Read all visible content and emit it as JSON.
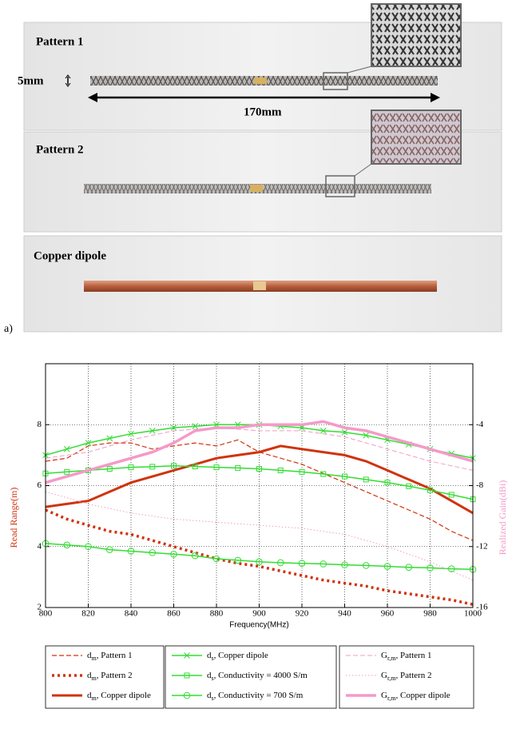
{
  "photo": {
    "panels": [
      {
        "label": "Pattern 1"
      },
      {
        "label": "Pattern 2"
      },
      {
        "label": "Copper dipole"
      }
    ],
    "width_label": "5mm",
    "length_label": "170mm",
    "caption": "a)"
  },
  "chart_data": {
    "type": "line",
    "x_label": "Frequency(MHz)",
    "y_label": "Read Range(m)",
    "y2_label": "Realized Gain(dBi)",
    "x": [
      800,
      810,
      820,
      830,
      840,
      850,
      860,
      870,
      880,
      890,
      900,
      910,
      920,
      930,
      940,
      950,
      960,
      970,
      980,
      990,
      1000
    ],
    "xlim": [
      800,
      1000
    ],
    "xticks": [
      800,
      820,
      840,
      860,
      880,
      900,
      920,
      940,
      960,
      980,
      1000
    ],
    "ylim": [
      2,
      10
    ],
    "yticks": [
      2,
      4,
      6,
      8
    ],
    "y2lim": [
      -16,
      0
    ],
    "y2ticks": [
      -16,
      -12,
      -8,
      -4
    ],
    "grid": true,
    "legend_columns": 3,
    "series": [
      {
        "name": "d_{m}, Pattern 1",
        "color": "#d0330f",
        "dash": "dashed",
        "width": 1.2,
        "marker": "none",
        "values": [
          6.8,
          6.9,
          7.3,
          7.4,
          7.4,
          7.2,
          7.3,
          7.4,
          7.3,
          7.5,
          7.1,
          6.9,
          6.7,
          6.4,
          6.1,
          5.8,
          5.5,
          5.2,
          4.9,
          4.5,
          4.2
        ]
      },
      {
        "name": "d_{m}, Pattern 2",
        "color": "#d0330f",
        "dash": "dotted",
        "width": 3.5,
        "marker": "none",
        "values": [
          5.2,
          4.9,
          4.7,
          4.5,
          4.4,
          4.2,
          4.0,
          3.8,
          3.6,
          3.45,
          3.35,
          3.2,
          3.05,
          2.9,
          2.8,
          2.7,
          2.55,
          2.45,
          2.35,
          2.25,
          2.1
        ]
      },
      {
        "name": "d_{m}, Copper dipole",
        "color": "#d0330f",
        "dash": "solid",
        "width": 3,
        "marker": "none",
        "values": [
          5.3,
          5.4,
          5.5,
          5.8,
          6.1,
          6.3,
          6.5,
          6.7,
          6.9,
          7.0,
          7.1,
          7.3,
          7.2,
          7.1,
          7.0,
          6.8,
          6.5,
          6.2,
          5.9,
          5.5,
          5.1
        ]
      },
      {
        "name": "d_{s}, Copper dipole",
        "color": "#33dd33",
        "dash": "solid",
        "width": 1.5,
        "marker": "x",
        "values": [
          7.0,
          7.2,
          7.4,
          7.55,
          7.7,
          7.8,
          7.9,
          7.95,
          8.0,
          8.0,
          8.0,
          7.95,
          7.9,
          7.8,
          7.75,
          7.65,
          7.5,
          7.35,
          7.2,
          7.05,
          6.9
        ]
      },
      {
        "name": "d_{s}, Conductivity = 4000 S/m",
        "color": "#33dd33",
        "dash": "solid",
        "width": 1.5,
        "marker": "square",
        "values": [
          6.4,
          6.45,
          6.5,
          6.55,
          6.6,
          6.62,
          6.65,
          6.63,
          6.6,
          6.58,
          6.55,
          6.5,
          6.45,
          6.38,
          6.3,
          6.2,
          6.1,
          5.98,
          5.85,
          5.7,
          5.55
        ]
      },
      {
        "name": "d_{s}, Conductivity = 700 S/m",
        "color": "#33dd33",
        "dash": "solid",
        "width": 1.5,
        "marker": "circle",
        "values": [
          4.1,
          4.05,
          4.0,
          3.9,
          3.85,
          3.8,
          3.75,
          3.7,
          3.6,
          3.55,
          3.5,
          3.47,
          3.45,
          3.43,
          3.4,
          3.38,
          3.35,
          3.32,
          3.3,
          3.27,
          3.25
        ]
      },
      {
        "name": "G_{r,m}, Pattern 1",
        "color": "#f49ac8",
        "dash": "dashed",
        "width": 1,
        "marker": "none",
        "axis": "y2",
        "values": [
          -6.2,
          -6.0,
          -5.8,
          -5.4,
          -5.0,
          -4.7,
          -4.4,
          -4.3,
          -4.2,
          -4.3,
          -4.4,
          -4.4,
          -4.4,
          -4.6,
          -4.8,
          -5.2,
          -5.6,
          -6.0,
          -6.4,
          -6.7,
          -7.0
        ]
      },
      {
        "name": "G_{r,m}, Pattern 2",
        "color": "#f49ac8",
        "dash": "dotted",
        "width": 1,
        "marker": "none",
        "axis": "y2",
        "values": [
          -8.4,
          -8.8,
          -9.2,
          -9.5,
          -9.8,
          -10.0,
          -10.2,
          -10.3,
          -10.4,
          -10.5,
          -10.6,
          -10.7,
          -10.8,
          -11.0,
          -11.2,
          -11.6,
          -12.0,
          -12.5,
          -13.0,
          -13.6,
          -14.2
        ]
      },
      {
        "name": "G_{r,m}, Copper dipole",
        "color": "#f49ac8",
        "dash": "solid",
        "width": 3.5,
        "marker": "none",
        "axis": "y2",
        "values": [
          -7.8,
          -7.4,
          -7.0,
          -6.6,
          -6.2,
          -5.8,
          -5.2,
          -4.4,
          -4.2,
          -4.2,
          -4.0,
          -4.0,
          -4.0,
          -3.8,
          -4.2,
          -4.4,
          -4.8,
          -5.2,
          -5.6,
          -6.0,
          -6.4
        ]
      }
    ]
  }
}
